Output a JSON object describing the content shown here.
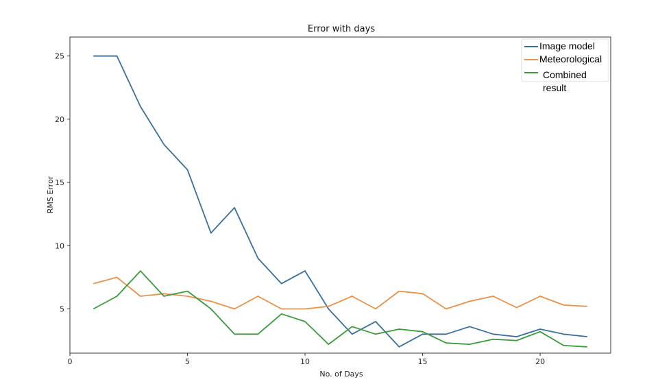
{
  "chart_data": {
    "type": "line",
    "title": "Error with days",
    "xlabel": "No. of Days",
    "ylabel": "RMS Error",
    "xlim": [
      0,
      23
    ],
    "ylim": [
      1.5,
      26.5
    ],
    "xticks": [
      0,
      5,
      10,
      15,
      20
    ],
    "yticks": [
      5,
      10,
      15,
      20,
      25
    ],
    "x": [
      1,
      2,
      3,
      4,
      5,
      6,
      7,
      8,
      9,
      10,
      11,
      12,
      13,
      14,
      15,
      16,
      17,
      18,
      19,
      20,
      21,
      22
    ],
    "series": [
      {
        "name": "Image model",
        "color": "#3a6f9a",
        "values": [
          25,
          25,
          21,
          18,
          16,
          11,
          13,
          9,
          7,
          8,
          5,
          3,
          4,
          2,
          3,
          3,
          3.6,
          3,
          2.8,
          3.4,
          3,
          2.8
        ]
      },
      {
        "name": "Meteorological",
        "color": "#e8914a",
        "values": [
          7,
          7.5,
          6,
          6.2,
          6,
          5.6,
          5,
          6,
          5,
          5,
          5.2,
          6,
          5,
          6.4,
          6.2,
          5,
          5.6,
          6,
          5.1,
          6,
          5.3,
          5.2
        ]
      },
      {
        "name": "Combined result",
        "color": "#3b9a3b",
        "values": [
          5,
          6,
          8,
          6,
          6.4,
          5,
          3,
          3,
          4.6,
          4,
          2.2,
          3.6,
          3,
          3.4,
          3.2,
          2.3,
          2.2,
          2.6,
          2.5,
          3.2,
          2.1,
          2
        ]
      }
    ],
    "legend": {
      "placement": "top-right",
      "entries": [
        "Image model",
        "Meteorological",
        "Combined",
        "result"
      ]
    },
    "grid": false
  }
}
